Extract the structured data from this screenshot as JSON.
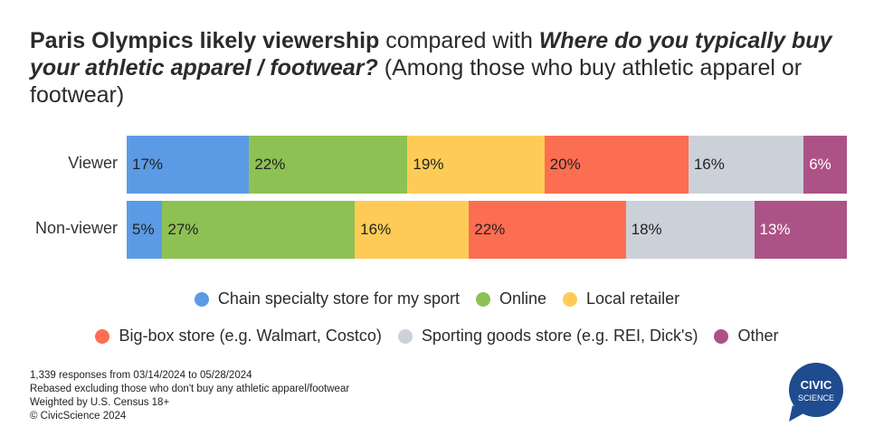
{
  "title": {
    "bold1": "Paris Olympics likely viewership",
    "plain1": " compared with ",
    "italic1": "Where do you typically buy your athletic apparel / footwear?",
    "plain2": " (Among those who buy athletic apparel or footwear)"
  },
  "colors": {
    "chain": "#5b9be6",
    "online": "#8dc153",
    "local": "#fecc56",
    "bigbox": "#fc6e51",
    "sporting": "#ccd1d9",
    "other": "#ac5287"
  },
  "chart_data": {
    "type": "bar",
    "orientation": "horizontal",
    "stacked": true,
    "categories": [
      "Viewer",
      "Non-viewer"
    ],
    "series": [
      {
        "name": "Chain specialty store for my sport",
        "color_key": "chain",
        "values": [
          17,
          5
        ],
        "labels": [
          "17%",
          "5%"
        ]
      },
      {
        "name": "Online",
        "color_key": "online",
        "values": [
          22,
          27
        ],
        "labels": [
          "22%",
          "27%"
        ]
      },
      {
        "name": "Local retailer",
        "color_key": "local",
        "values": [
          19,
          16
        ],
        "labels": [
          "19%",
          "16%"
        ]
      },
      {
        "name": "Big-box store (e.g. Walmart, Costco)",
        "color_key": "bigbox",
        "values": [
          20,
          22
        ],
        "labels": [
          "20%",
          "22%"
        ]
      },
      {
        "name": "Sporting goods store (e.g. REI, Dick's)",
        "color_key": "sporting",
        "values": [
          16,
          18
        ],
        "labels": [
          "16%",
          "18%"
        ]
      },
      {
        "name": "Other",
        "color_key": "other",
        "values": [
          6,
          13
        ],
        "labels": [
          "6%",
          "13%"
        ]
      }
    ],
    "legend_placement": "bottom"
  },
  "notes": [
    "1,339 responses from 03/14/2024 to 05/28/2024",
    "Rebased excluding those who don't buy any athletic apparel/footwear",
    "Weighted by U.S. Census 18+",
    "© CivicScience 2024"
  ],
  "logo": {
    "line1": "CIVIC",
    "line2": "SCIENCE",
    "color": "#1f4b8f"
  }
}
